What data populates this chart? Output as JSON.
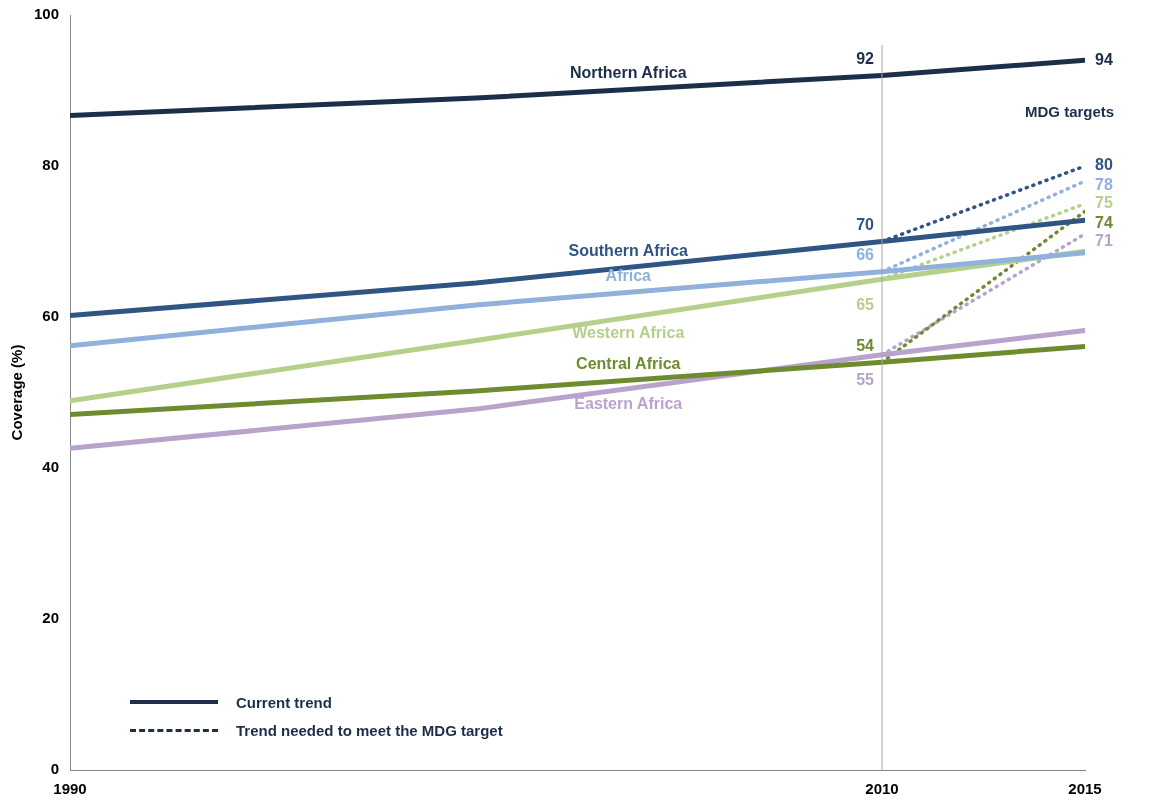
{
  "chart_data": {
    "type": "line",
    "ylabel": "Coverage (%)",
    "xlim": [
      1990,
      2015
    ],
    "xticks": [
      1990,
      2010,
      2015
    ],
    "ylim": [
      0,
      100
    ],
    "yticks": [
      0,
      20,
      40,
      60,
      80,
      100
    ],
    "grid": false,
    "legend": false,
    "marker": "none",
    "line_style": "solid",
    "ref_lines": [
      {
        "axis": "x",
        "value": 2010,
        "color": "#a6a6a6"
      }
    ],
    "annotations": [
      "MDG targets",
      "Current trend",
      "Trend needed to meet the MDG target"
    ],
    "series": [
      {
        "name": "Northern Africa",
        "color": "#1c2e4a",
        "x": [
          1990,
          2000,
          2010,
          2015
        ],
        "values": [
          86.7,
          89,
          92,
          94
        ],
        "value_labels": [
          null,
          null,
          "92",
          "94"
        ]
      },
      {
        "name": "Southern Africa",
        "color": "#2f5584",
        "x": [
          1990,
          2000,
          2010,
          2015
        ],
        "values": [
          60.2,
          64.5,
          70,
          72.8
        ],
        "value_labels": [
          null,
          null,
          "70",
          null
        ]
      },
      {
        "name": "Africa",
        "color": "#8fb1dc",
        "x": [
          1990,
          2000,
          2010,
          2015
        ],
        "values": [
          56.2,
          61.6,
          66,
          68.5
        ],
        "value_labels": [
          null,
          null,
          "66",
          null
        ]
      },
      {
        "name": "Western Africa",
        "color": "#b5d08a",
        "x": [
          1990,
          2000,
          2010,
          2015
        ],
        "values": [
          48.9,
          56.9,
          65,
          68.7
        ],
        "value_labels": [
          null,
          null,
          "65",
          null
        ]
      },
      {
        "name": "Central Africa",
        "color": "#6e8b2f",
        "x": [
          1990,
          2000,
          2010,
          2015
        ],
        "values": [
          47.1,
          50.2,
          54,
          56.1
        ],
        "value_labels": [
          null,
          null,
          "54",
          null
        ]
      },
      {
        "name": "Eastern Africa",
        "color": "#b9a3cc",
        "x": [
          1990,
          2000,
          2010,
          2015
        ],
        "values": [
          42.6,
          47.8,
          55,
          58.2
        ],
        "value_labels": [
          null,
          null,
          "55",
          null
        ]
      },
      {
        "color": "#2f5584",
        "line_style": "dotted",
        "x": [
          2010,
          2015
        ],
        "values": [
          70,
          80
        ],
        "value_labels": [
          null,
          "80"
        ]
      },
      {
        "color": "#8fb1dc",
        "line_style": "dotted",
        "x": [
          2010,
          2015
        ],
        "values": [
          66,
          78
        ],
        "value_labels": [
          null,
          "78"
        ]
      },
      {
        "color": "#b5d08a",
        "line_style": "dotted",
        "x": [
          2010,
          2015
        ],
        "values": [
          65,
          75
        ],
        "value_labels": [
          null,
          "75"
        ]
      },
      {
        "color": "#6e8b2f",
        "line_style": "dotted",
        "x": [
          2010,
          2015
        ],
        "values": [
          54,
          74
        ],
        "value_labels": [
          null,
          "74"
        ]
      },
      {
        "color": "#b9a3cc",
        "line_style": "dotted",
        "x": [
          2010,
          2015
        ],
        "values": [
          55,
          71
        ],
        "value_labels": [
          null,
          "71"
        ]
      }
    ]
  }
}
